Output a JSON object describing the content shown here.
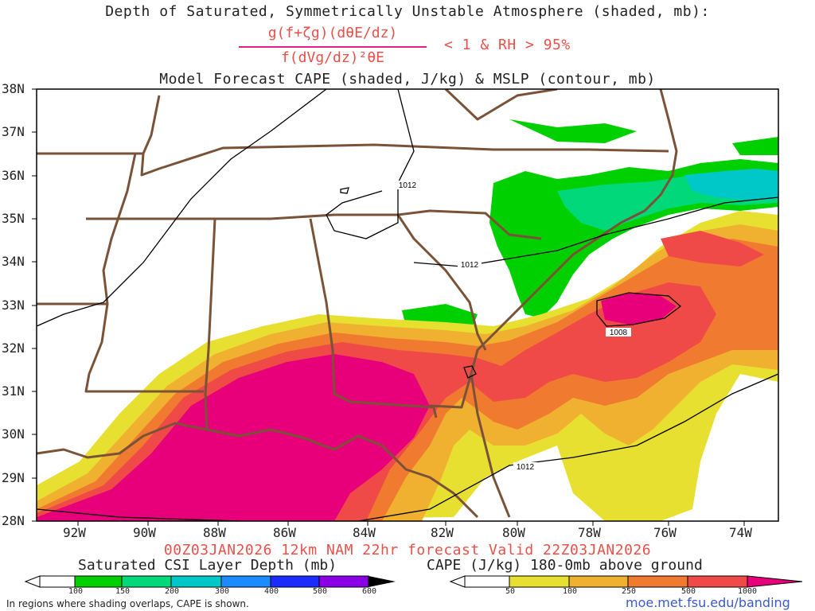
{
  "title": {
    "line1": "Depth of Saturated, Symmetrically Unstable Atmosphere (shaded, mb):",
    "numerator": "g(f+ζg)(dθE/dz)",
    "denominator": "f(dVg/dz)²θE",
    "condition": "< 1 & RH > 95%",
    "line3": "Model Forecast CAPE (shaded, J/kg) & MSLP (contour, mb)"
  },
  "axes": {
    "lat_labels": [
      "38N",
      "37N",
      "36N",
      "35N",
      "34N",
      "33N",
      "32N",
      "31N",
      "30N",
      "29N",
      "28N"
    ],
    "lon_labels": [
      "92W",
      "90W",
      "88W",
      "86W",
      "84W",
      "82W",
      "80W",
      "78W",
      "76W",
      "74W"
    ]
  },
  "isobars": {
    "labels": [
      "1012",
      "1012",
      "1008",
      "1012"
    ]
  },
  "valid_time": "00Z03JAN2026 12km NAM 22hr forecast Valid 22Z03JAN2026",
  "legend_csi": {
    "label": "Saturated CSI Layer Depth (mb)",
    "ticks": [
      "100",
      "150",
      "200",
      "300",
      "400",
      "500",
      "600"
    ],
    "colors": [
      "#00d000",
      "#00d87a",
      "#00c8c8",
      "#1a8cff",
      "#1a2cff",
      "#8a00e6",
      "#000000"
    ]
  },
  "legend_cape": {
    "label": "CAPE (J/kg) 180-0mb above ground",
    "ticks": [
      "50",
      "100",
      "250",
      "500",
      "1000"
    ],
    "colors": [
      "#e8e030",
      "#f0b030",
      "#f07a30",
      "#f04a48",
      "#e8007a"
    ]
  },
  "note": "In regions where shading overlaps, CAPE is shown.",
  "url": "moe.met.fsu.edu/banding"
}
